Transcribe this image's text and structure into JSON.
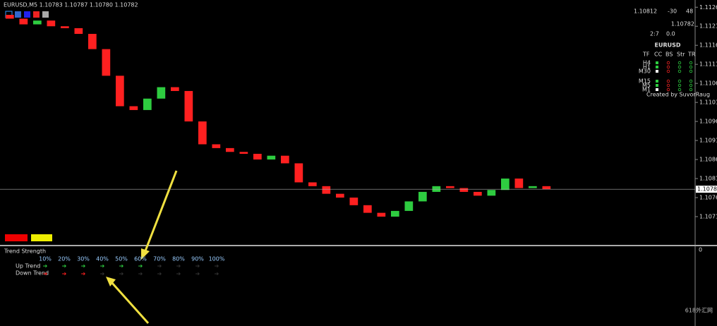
{
  "chart_data": {
    "type": "candlestick",
    "title": "EURUSD,M5  1.10783 1.10787 1.10780 1.10782",
    "open": [
      1.1124,
      1.1123,
      1.11215,
      1.11225,
      1.1121,
      1.11205,
      1.1119,
      1.1115,
      1.1108,
      1.11,
      1.1099,
      1.1102,
      1.1105,
      1.1104,
      1.1096,
      1.109,
      1.1089,
      1.1088,
      1.10875,
      1.1086,
      1.1087,
      1.1085,
      1.108,
      1.1079,
      1.1077,
      1.1076,
      1.1074,
      1.1072,
      1.1071,
      1.10725,
      1.1075,
      1.10775,
      1.1079,
      1.10785,
      1.10775,
      1.10765,
      1.1078,
      1.1081,
      1.10785,
      1.1079
    ],
    "close": [
      1.1123,
      1.11215,
      1.11225,
      1.1121,
      1.11205,
      1.1119,
      1.1115,
      1.1108,
      1.11,
      1.1099,
      1.1102,
      1.1105,
      1.1104,
      1.1096,
      1.109,
      1.1089,
      1.1088,
      1.10875,
      1.1086,
      1.1087,
      1.1085,
      1.108,
      1.1079,
      1.1077,
      1.1076,
      1.1074,
      1.1072,
      1.1071,
      1.10725,
      1.1075,
      1.10775,
      1.1079,
      1.10785,
      1.10775,
      1.10765,
      1.1078,
      1.1081,
      1.10785,
      1.1079,
      1.10782
    ],
    "up_color": "#2ecc40",
    "down_color": "#ff2020",
    "ylim": [
      1.11279,
      1.10634
    ],
    "yticks": [
      {
        "value": 1.1126,
        "label": "1.11260"
      },
      {
        "value": 1.1121,
        "label": "1.11210"
      },
      {
        "value": 1.1116,
        "label": "1.11160"
      },
      {
        "value": 1.1111,
        "label": "1.11110"
      },
      {
        "value": 1.1106,
        "label": "1.11060"
      },
      {
        "value": 1.1101,
        "label": "1.11010"
      },
      {
        "value": 1.1096,
        "label": "1.10960"
      },
      {
        "value": 1.1091,
        "label": "1.10910"
      },
      {
        "value": 1.1086,
        "label": "1.10860"
      },
      {
        "value": 1.1081,
        "label": "1.10810"
      },
      {
        "value": 1.1076,
        "label": "1.10760"
      },
      {
        "value": 1.1071,
        "label": "1.10710"
      }
    ],
    "current": {
      "value": 1.10782,
      "label": "1.10782"
    }
  },
  "panel": {
    "bid": "1.10812",
    "spread": "-30",
    "count": "48",
    "price": "1.10782",
    "ratio": "2:7",
    "change": "0.0",
    "symbol": "EURUSD",
    "headers": [
      "TF",
      "CC",
      "BS",
      "Str",
      "TR"
    ],
    "timeframes": [
      "H4",
      "H1",
      "M30",
      "M15",
      "M5",
      "M1"
    ],
    "credit": "Created by SuvorRaug"
  },
  "trend": {
    "title": "Trend Strength",
    "levels": [
      "10%",
      "20%",
      "30%",
      "40%",
      "50%",
      "60%",
      "70%",
      "80%",
      "90%",
      "100%"
    ],
    "up_label": "Up Trend",
    "down_label": "Down Trend",
    "up_lit": 6,
    "down_lit": 3,
    "zero": "0"
  },
  "watermark": "618外汇网"
}
